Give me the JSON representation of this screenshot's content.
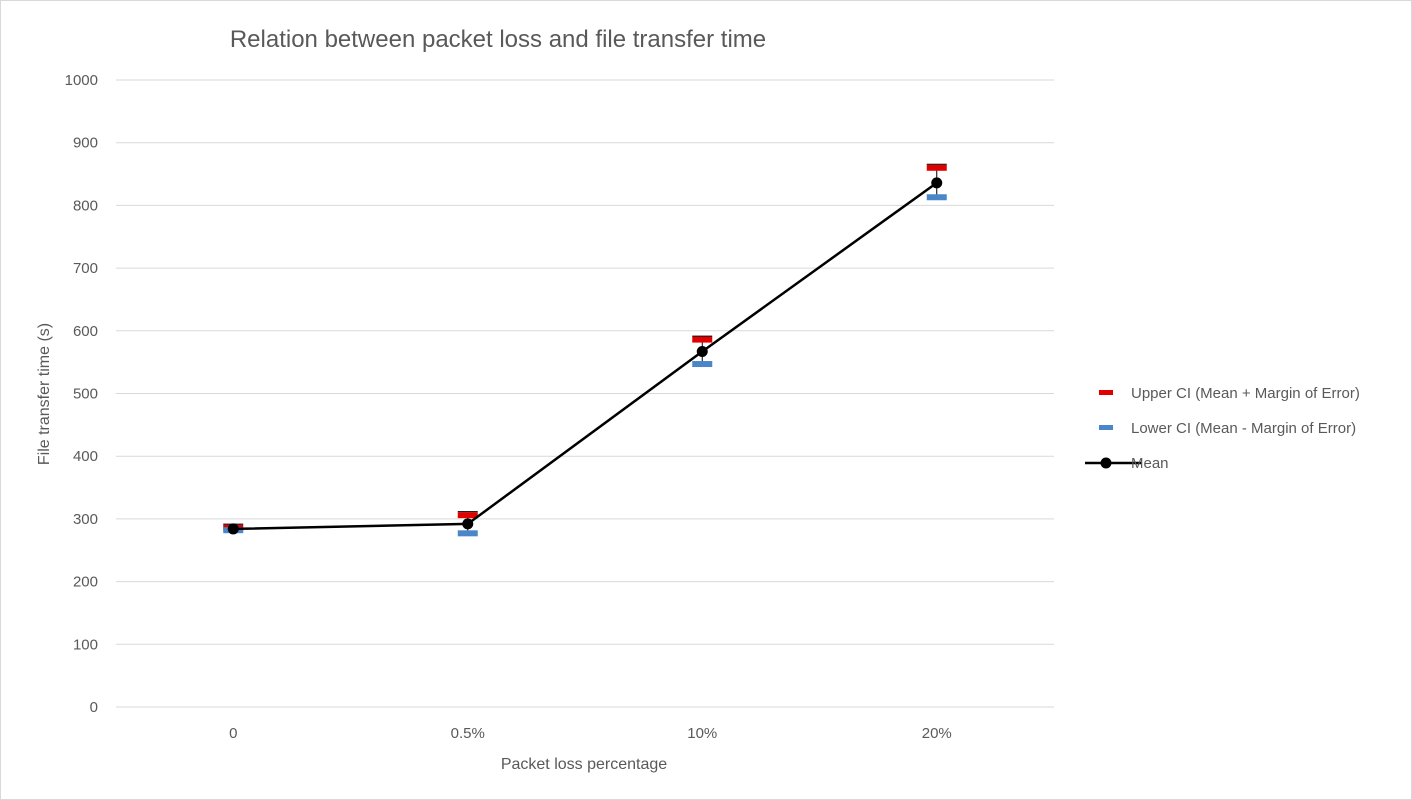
{
  "chart_data": {
    "type": "line",
    "title": "Relation between packet loss and file transfer time",
    "xlabel": "Packet loss percentage",
    "ylabel": "File transfer time (s)",
    "categories": [
      "0",
      "0.5%",
      "10%",
      "20%"
    ],
    "ylim": [
      0,
      1000
    ],
    "yticks": [
      0,
      100,
      200,
      300,
      400,
      500,
      600,
      700,
      800,
      900,
      1000
    ],
    "grid": true,
    "legend_position": "right",
    "series": [
      {
        "name": "Upper CI (Mean + Margin of Error)",
        "values": [
          286,
          306,
          586,
          860
        ],
        "color": "#e00000",
        "marker": "dash"
      },
      {
        "name": "Lower CI (Mean - Margin of Error)",
        "values": [
          282,
          277,
          547,
          813
        ],
        "color": "#4a86c8",
        "marker": "dash"
      },
      {
        "name": "Mean",
        "values": [
          284,
          292,
          567,
          836
        ],
        "color": "#000000",
        "marker": "circle"
      }
    ]
  }
}
